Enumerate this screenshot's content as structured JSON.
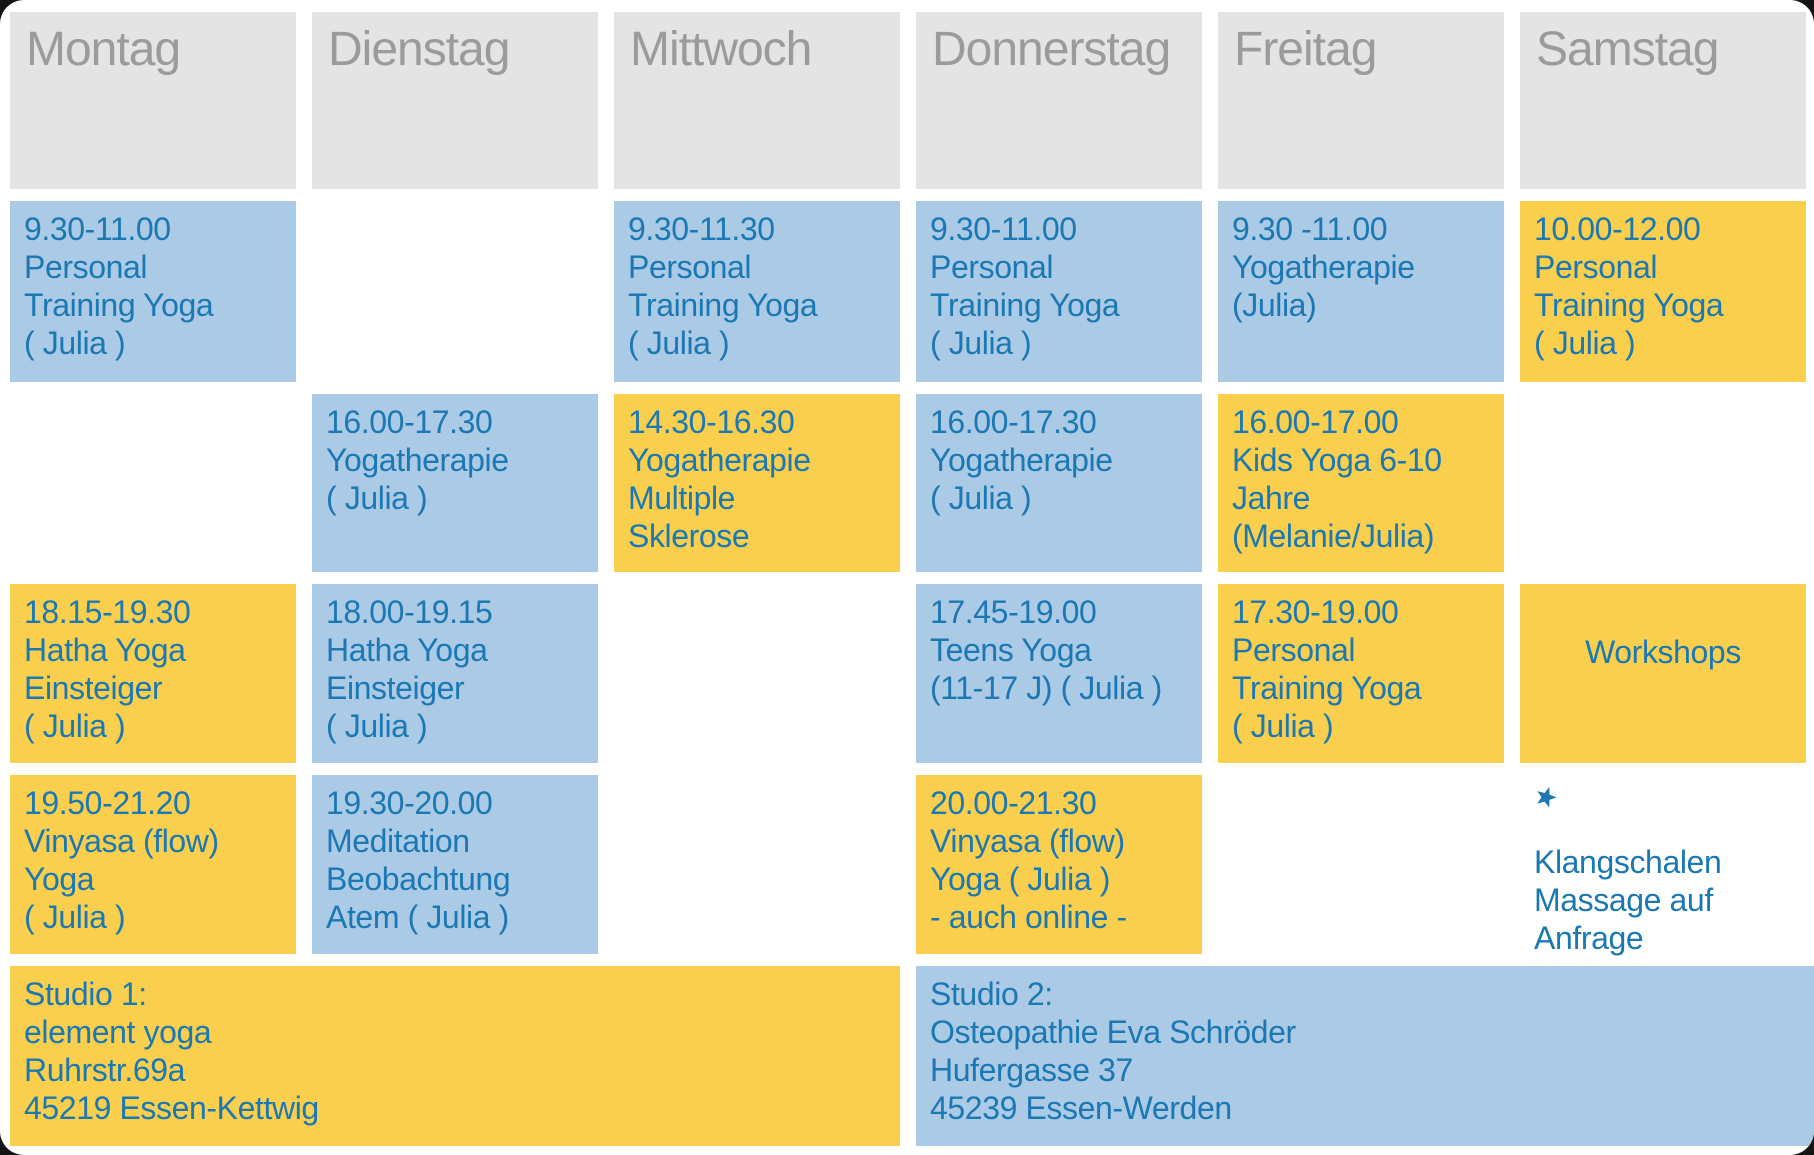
{
  "colors": {
    "header_bg": "#e4e4e4",
    "header_text": "#9b9b9b",
    "cell_blue": "#aacae6",
    "cell_yellow": "#facf4d",
    "text_blue": "#1b78b2",
    "page_bg": "#ffffff"
  },
  "header": {
    "days": [
      "Montag",
      "Dienstag",
      "Mittwoch",
      "Donnerstag",
      "Freitag",
      "Samstag"
    ]
  },
  "cells": {
    "mon_morning": {
      "color": "blue",
      "lines": [
        "9.30-11.00",
        "Personal",
        "Training Yoga",
        "( Julia )"
      ]
    },
    "wed_morning": {
      "color": "blue",
      "lines": [
        "9.30-11.30",
        "Personal",
        "Training Yoga",
        "( Julia )"
      ]
    },
    "thu_morning": {
      "color": "blue",
      "lines": [
        "9.30-11.00",
        "Personal",
        "Training Yoga",
        "( Julia )"
      ]
    },
    "fri_morning": {
      "color": "blue",
      "lines": [
        "9.30 -11.00",
        "Yogatherapie",
        "(Julia)"
      ]
    },
    "sat_morning": {
      "color": "yellow",
      "lines": [
        "10.00-12.00",
        "Personal",
        "Training Yoga",
        "( Julia )"
      ]
    },
    "tue_afternoon": {
      "color": "blue",
      "lines": [
        "16.00-17.30",
        "Yogatherapie",
        "( Julia )"
      ]
    },
    "wed_afternoon": {
      "color": "yellow",
      "lines": [
        "14.30-16.30",
        "Yogatherapie",
        "Multiple",
        "Sklerose"
      ]
    },
    "thu_afternoon": {
      "color": "blue",
      "lines": [
        "16.00-17.30",
        "Yogatherapie",
        "( Julia )"
      ]
    },
    "fri_afternoon": {
      "color": "yellow",
      "lines": [
        "16.00-17.00",
        "Kids Yoga 6-10",
        "Jahre",
        "(Melanie/Julia)"
      ]
    },
    "mon_evening": {
      "color": "yellow",
      "lines": [
        "18.15-19.30",
        "Hatha Yoga",
        "Einsteiger",
        "( Julia )"
      ]
    },
    "tue_evening": {
      "color": "blue",
      "lines": [
        "18.00-19.15",
        "Hatha Yoga",
        "Einsteiger",
        "( Julia )"
      ]
    },
    "thu_evening": {
      "color": "blue",
      "lines": [
        "17.45-19.00",
        "Teens Yoga",
        "(11-17 J) ( Julia )"
      ]
    },
    "fri_evening": {
      "color": "yellow",
      "lines": [
        "17.30-19.00",
        "Personal",
        "Training Yoga",
        "( Julia )"
      ]
    },
    "sat_workshops": {
      "color": "yellow",
      "label": "Workshops"
    },
    "mon_late": {
      "color": "yellow",
      "lines": [
        "19.50-21.20",
        "Vinyasa (flow)",
        "Yoga",
        "( Julia )"
      ]
    },
    "tue_late": {
      "color": "blue",
      "lines": [
        "19.30-20.00",
        "Meditation",
        "Beobachtung",
        "Atem ( Julia )"
      ]
    },
    "thu_late": {
      "color": "yellow",
      "lines": [
        "20.00-21.30",
        "Vinyasa (flow)",
        "Yoga  ( Julia )",
        "- auch online -"
      ]
    },
    "sat_note": {
      "icon": "pinwheel-star-icon",
      "lines": [
        "Klangschalen",
        "Massage auf",
        "Anfrage"
      ]
    },
    "studio1": {
      "color": "yellow",
      "lines": [
        "Studio 1:",
        "element yoga",
        "Ruhrstr.69a",
        "45219 Essen-Kettwig"
      ]
    },
    "studio2": {
      "color": "blue",
      "lines": [
        "Studio 2:",
        "Osteopathie Eva Schröder",
        "Hufergasse 37",
        "45239 Essen-Werden"
      ]
    }
  }
}
